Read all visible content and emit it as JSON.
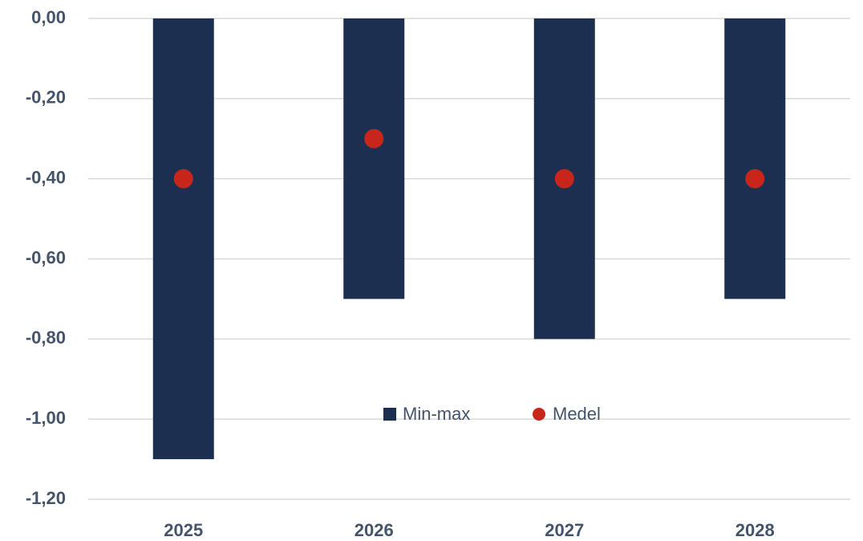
{
  "chart_data": {
    "type": "floating-bar",
    "categories": [
      "2025",
      "2026",
      "2027",
      "2028"
    ],
    "series": [
      {
        "name": "Min-max",
        "color": "#1c2f50",
        "min": [
          -1.1,
          -0.7,
          -0.8,
          -0.7
        ],
        "max": [
          0,
          0,
          0,
          0
        ]
      },
      {
        "name": "Medel",
        "color": "#c8261b",
        "values": [
          -0.4,
          -0.3,
          -0.4,
          -0.4
        ]
      }
    ],
    "ylim": [
      -1.2,
      0
    ],
    "yticks": [
      {
        "value": 0,
        "label": "0,00"
      },
      {
        "value": -0.2,
        "label": "-0,20"
      },
      {
        "value": -0.4,
        "label": "-0,40"
      },
      {
        "value": -0.6,
        "label": "-0,60"
      },
      {
        "value": -0.8,
        "label": "-0,80"
      },
      {
        "value": -1,
        "label": "-1,00"
      },
      {
        "value": -1.2,
        "label": "-1,20"
      }
    ],
    "grid": true,
    "legend": "center"
  }
}
